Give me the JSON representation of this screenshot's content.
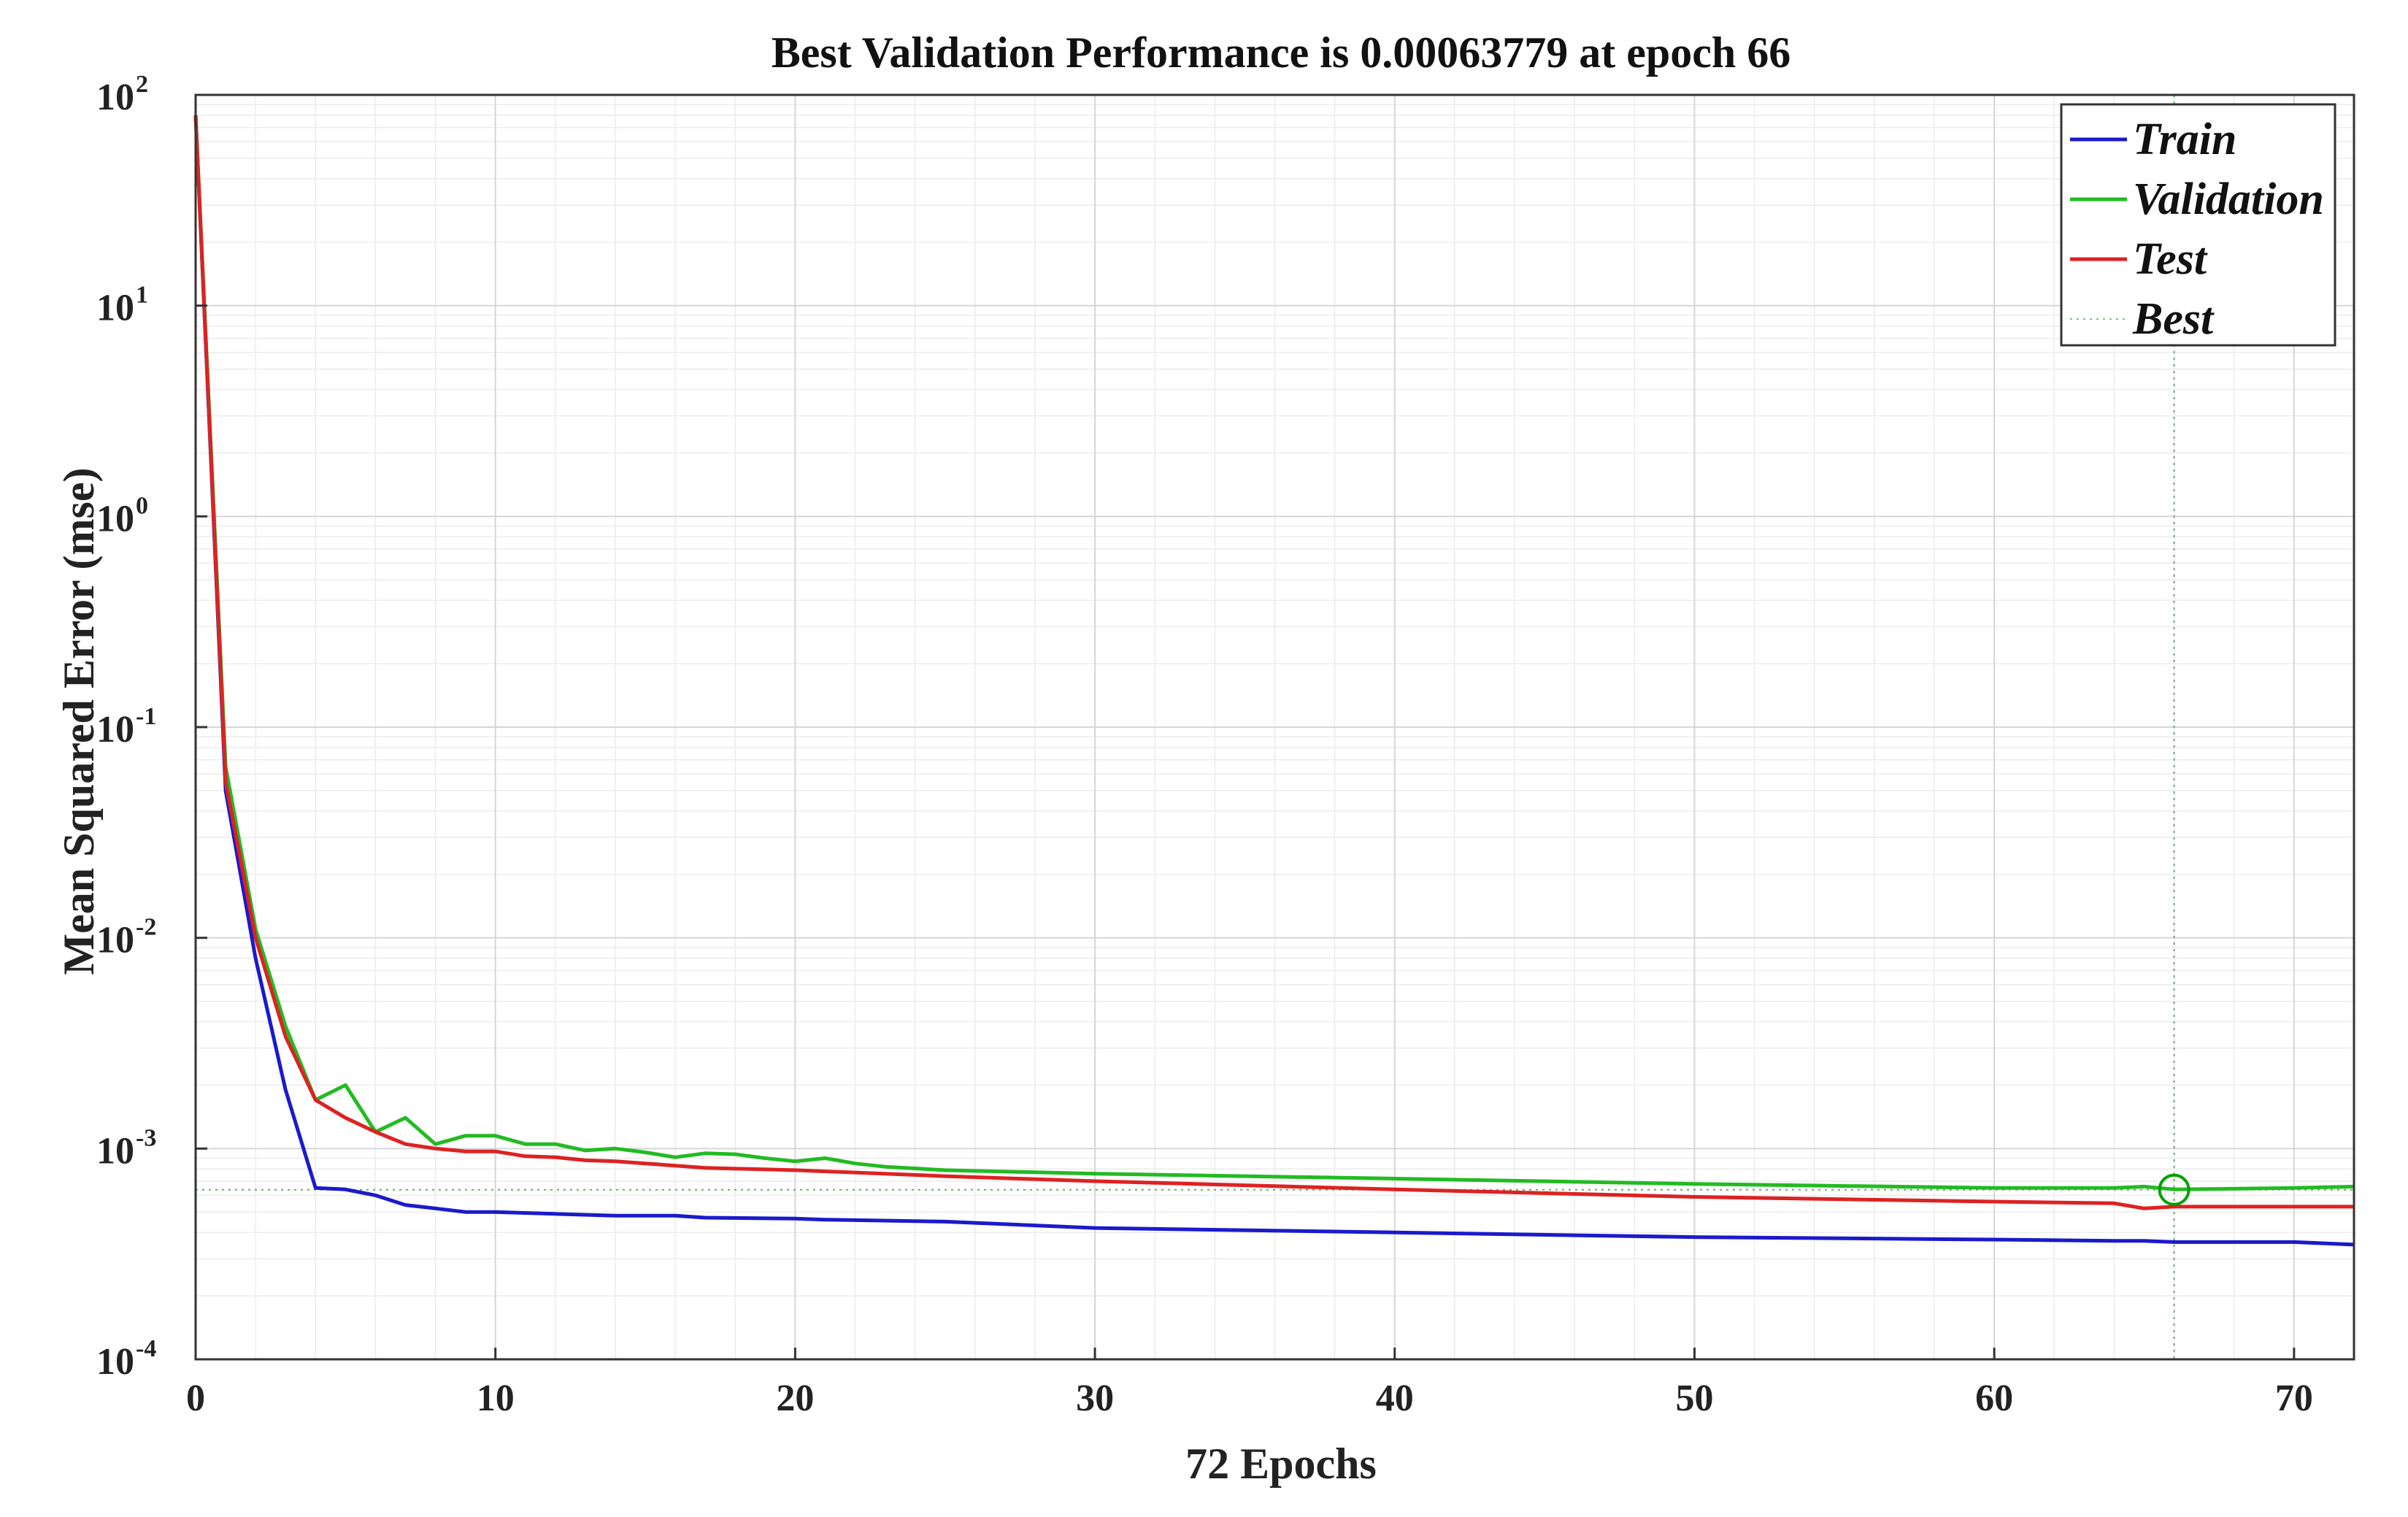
{
  "chart_data": {
    "type": "line",
    "title": "Best Validation Performance is 0.00063779 at epoch 66",
    "xlabel": "72 Epochs",
    "ylabel": "Mean Squared Error  (mse)",
    "xlim": [
      0,
      72
    ],
    "ylim": [
      0.0001,
      100
    ],
    "yscale": "log",
    "x_ticks": [
      0,
      10,
      20,
      30,
      40,
      50,
      60,
      70
    ],
    "y_ticks": [
      {
        "base": "10",
        "exp": "2",
        "value": 100
      },
      {
        "base": "10",
        "exp": "1",
        "value": 10
      },
      {
        "base": "10",
        "exp": "0",
        "value": 1
      },
      {
        "base": "10",
        "exp": "-1",
        "value": 0.1
      },
      {
        "base": "10",
        "exp": "-2",
        "value": 0.01
      },
      {
        "base": "10",
        "exp": "-3",
        "value": 0.001
      },
      {
        "base": "10",
        "exp": "-4",
        "value": 0.0001
      }
    ],
    "grid": true,
    "legend_position": "top-right",
    "best": {
      "label": "Best",
      "epoch": 66,
      "value": 0.00063779,
      "color": "#00a000"
    },
    "series": [
      {
        "name": "Train",
        "color": "#1a1acc",
        "x": [
          0,
          1,
          2,
          3,
          4,
          5,
          6,
          7,
          8,
          9,
          10,
          12,
          14,
          16,
          17,
          20,
          21,
          25,
          30,
          40,
          50,
          60,
          64,
          65,
          66,
          70,
          72
        ],
        "values": [
          80,
          0.05,
          0.008,
          0.0019,
          0.00065,
          0.00064,
          0.0006,
          0.00054,
          0.00052,
          0.0005,
          0.0005,
          0.00049,
          0.00048,
          0.00048,
          0.00047,
          0.000465,
          0.00046,
          0.00045,
          0.00042,
          0.0004,
          0.00038,
          0.00037,
          0.000365,
          0.000365,
          0.00036,
          0.00036,
          0.00035
        ]
      },
      {
        "name": "Validation",
        "color": "#22bb22",
        "x": [
          0,
          1,
          2,
          3,
          4,
          5,
          6,
          7,
          8,
          9,
          10,
          11,
          12,
          13,
          14,
          15,
          16,
          17,
          18,
          19,
          20,
          21,
          22,
          23,
          25,
          30,
          40,
          50,
          60,
          64,
          65,
          66,
          70,
          72
        ],
        "values": [
          80,
          0.065,
          0.011,
          0.0038,
          0.0017,
          0.002,
          0.0012,
          0.0014,
          0.00105,
          0.00115,
          0.00115,
          0.00105,
          0.00105,
          0.00098,
          0.001,
          0.00096,
          0.00091,
          0.00095,
          0.00094,
          0.0009,
          0.00087,
          0.0009,
          0.00085,
          0.00082,
          0.00079,
          0.00076,
          0.00072,
          0.00068,
          0.00065,
          0.00065,
          0.00066,
          0.00064,
          0.00065,
          0.00066
        ]
      },
      {
        "name": "Test",
        "color": "#dd2222",
        "x": [
          0,
          1,
          2,
          3,
          4,
          5,
          6,
          7,
          8,
          9,
          10,
          11,
          12,
          13,
          14,
          15,
          16,
          17,
          20,
          25,
          30,
          40,
          50,
          60,
          64,
          65,
          66,
          70,
          72
        ],
        "values": [
          80,
          0.055,
          0.01,
          0.0034,
          0.0017,
          0.0014,
          0.0012,
          0.00105,
          0.001,
          0.00097,
          0.00097,
          0.00092,
          0.00091,
          0.00088,
          0.00087,
          0.00085,
          0.00083,
          0.00081,
          0.00079,
          0.00074,
          0.0007,
          0.00064,
          0.00059,
          0.00056,
          0.00055,
          0.00052,
          0.00053,
          0.00053,
          0.00053
        ]
      }
    ]
  }
}
